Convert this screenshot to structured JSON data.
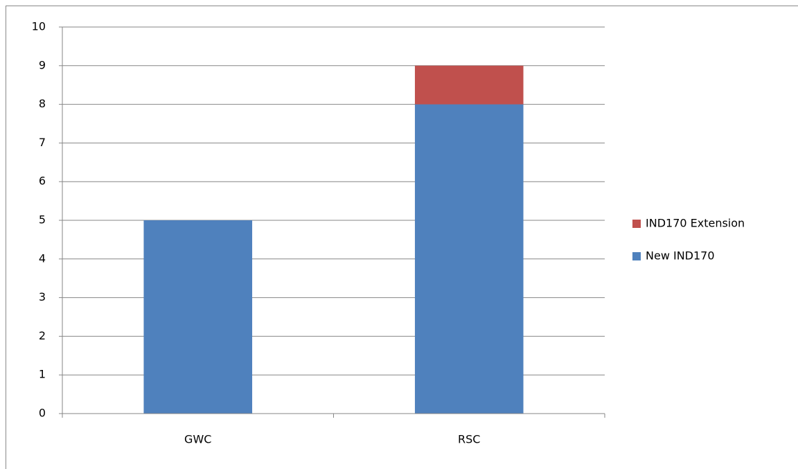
{
  "chart_data": {
    "type": "stacked_bar",
    "categories": [
      "GWC",
      "RSC"
    ],
    "series": [
      {
        "name": "New IND170",
        "color": "#4f81bd",
        "values": [
          5,
          8
        ]
      },
      {
        "name": "IND170 Extension",
        "color": "#c0504d",
        "values": [
          0,
          1
        ]
      }
    ],
    "ylim": [
      0,
      10
    ],
    "yticks": [
      0,
      1,
      2,
      3,
      4,
      5,
      6,
      7,
      8,
      9,
      10
    ],
    "grid": true,
    "legend": "right"
  }
}
